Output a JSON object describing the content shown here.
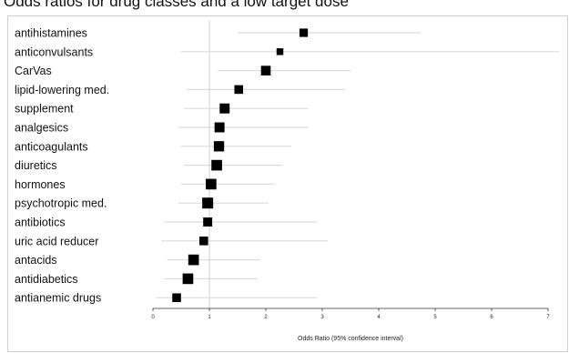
{
  "chart_data": {
    "type": "scatter",
    "title": "Odds ratios for drug classes and a low target dose",
    "xlabel": "Odds Ratio (95% confidence interval)",
    "ylabel": "",
    "xlim": [
      0,
      7
    ],
    "xticks": [
      "0",
      "1",
      "2",
      "3",
      "4",
      "5",
      "6",
      "7"
    ],
    "reference_line": 1,
    "grid": false,
    "marker_color": "#000000",
    "ci_color": "#dcdcdc",
    "rows": [
      {
        "label": "antihistamines",
        "or": 2.67,
        "ci_low": 1.5,
        "ci_high": 4.75,
        "weight": 0.6
      },
      {
        "label": "anticonvulsants",
        "or": 2.25,
        "ci_low": 0.5,
        "ci_high": 7.2,
        "weight": 0.35
      },
      {
        "label": "CarVas",
        "or": 2.0,
        "ci_low": 1.15,
        "ci_high": 3.5,
        "weight": 0.8
      },
      {
        "label": "lipid-lowering med.",
        "or": 1.52,
        "ci_low": 0.6,
        "ci_high": 3.4,
        "weight": 0.65
      },
      {
        "label": "supplement",
        "or": 1.27,
        "ci_low": 0.55,
        "ci_high": 2.75,
        "weight": 0.85
      },
      {
        "label": "analgesics",
        "or": 1.18,
        "ci_low": 0.45,
        "ci_high": 2.75,
        "weight": 0.85
      },
      {
        "label": "anticoagulants",
        "or": 1.17,
        "ci_low": 0.5,
        "ci_high": 2.45,
        "weight": 0.9
      },
      {
        "label": "diuretics",
        "or": 1.13,
        "ci_low": 0.55,
        "ci_high": 2.3,
        "weight": 0.95
      },
      {
        "label": "hormones",
        "or": 1.03,
        "ci_low": 0.5,
        "ci_high": 2.15,
        "weight": 0.95
      },
      {
        "label": "psychotropic med.",
        "or": 0.97,
        "ci_low": 0.45,
        "ci_high": 2.05,
        "weight": 1.0
      },
      {
        "label": "antibiotics",
        "or": 0.97,
        "ci_low": 0.2,
        "ci_high": 2.9,
        "weight": 0.7
      },
      {
        "label": "uric acid reducer",
        "or": 0.9,
        "ci_low": 0.15,
        "ci_high": 3.1,
        "weight": 0.65
      },
      {
        "label": "antacids",
        "or": 0.72,
        "ci_low": 0.25,
        "ci_high": 1.9,
        "weight": 0.95
      },
      {
        "label": "antidiabetics",
        "or": 0.62,
        "ci_low": 0.2,
        "ci_high": 1.85,
        "weight": 0.95
      },
      {
        "label": "antianemic drugs",
        "or": 0.42,
        "ci_low": 0.05,
        "ci_high": 2.9,
        "weight": 0.65
      }
    ]
  }
}
